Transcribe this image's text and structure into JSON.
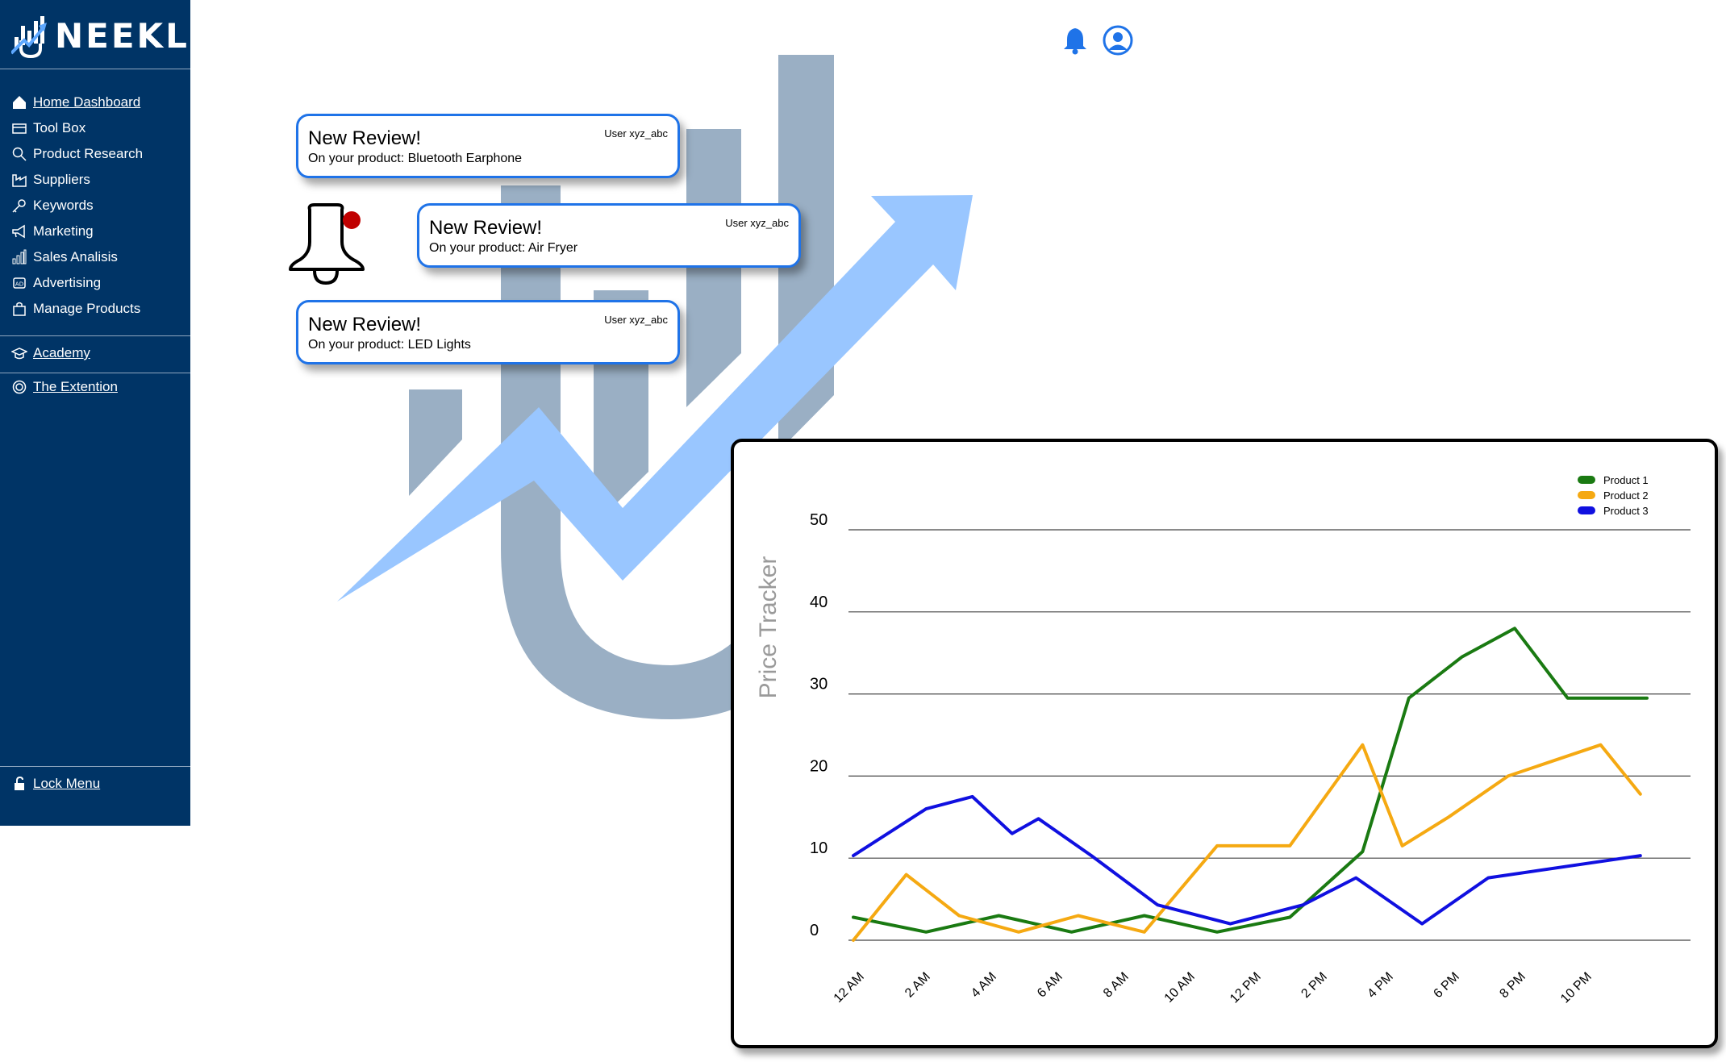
{
  "brand": {
    "name": "NEEKLI",
    "accent": "#003466",
    "highlight": "#1f73e8"
  },
  "sidebar": {
    "items": [
      {
        "label": "Home Dashboard",
        "icon": "home-icon",
        "underlined": true
      },
      {
        "label": "Tool Box",
        "icon": "toolbox-icon",
        "underlined": false
      },
      {
        "label": "Product Research",
        "icon": "search-icon",
        "underlined": false
      },
      {
        "label": "Suppliers",
        "icon": "factory-icon",
        "underlined": false
      },
      {
        "label": "Keywords",
        "icon": "key-icon",
        "underlined": false
      },
      {
        "label": "Marketing",
        "icon": "megaphone-icon",
        "underlined": false
      },
      {
        "label": "Sales Analisis",
        "icon": "bar-chart-icon",
        "underlined": false
      },
      {
        "label": "Advertising",
        "icon": "ad-icon",
        "underlined": false
      },
      {
        "label": "Manage Products",
        "icon": "shopping-bag-icon",
        "underlined": false
      }
    ],
    "academy": {
      "label": "Academy",
      "icon": "graduation-cap-icon"
    },
    "extension": {
      "label": "The Extention",
      "icon": "extension-icon"
    },
    "lock": {
      "label": "Lock Menu",
      "icon": "lock-icon"
    }
  },
  "header": {
    "bell_icon": "bell-icon",
    "user_icon": "user-circle-icon"
  },
  "notifications": [
    {
      "title": "New Review!",
      "subtitle": "On your product: Bluetooth Earphone",
      "user": "User xyz_abc"
    },
    {
      "title": "New Review!",
      "subtitle": "On your product: Air Fryer",
      "user": "User xyz_abc"
    },
    {
      "title": "New Review!",
      "subtitle": "On your product: LED Lights",
      "user": "User xyz_abc"
    }
  ],
  "chart_data": {
    "type": "line",
    "title": "",
    "xlabel": "",
    "ylabel": "Price Tracker",
    "ylim": [
      0,
      50
    ],
    "yticks": [
      0,
      10,
      20,
      30,
      40,
      50
    ],
    "categories": [
      "12 AM",
      "2 AM",
      "4 AM",
      "6 AM",
      "8 AM",
      "10 AM",
      "12 PM",
      "2 PM",
      "4 PM",
      "6 PM",
      "8 PM",
      "10 PM"
    ],
    "grid": true,
    "legend": "top-right",
    "series": [
      {
        "name": "Product 1",
        "color": "#1a7a12",
        "x": [
          0,
          1.1,
          2.2,
          3.3,
          4.4,
          5.5,
          6.6,
          7.7,
          8.4,
          9.2,
          10.0,
          10.8,
          12.0
        ],
        "y": [
          2.8,
          1.0,
          3.0,
          1.0,
          3.0,
          1.0,
          2.8,
          10.8,
          29.5,
          34.5,
          38.0,
          29.5,
          29.5
        ]
      },
      {
        "name": "Product 2",
        "color": "#f5a912",
        "x": [
          0,
          0.8,
          1.6,
          2.5,
          3.4,
          4.4,
          5.5,
          6.6,
          7.7,
          8.3,
          9.0,
          9.9,
          11.3,
          11.9
        ],
        "y": [
          0,
          8.0,
          3.0,
          1.0,
          3.0,
          1.0,
          11.5,
          11.5,
          23.8,
          11.5,
          15.0,
          20.0,
          23.8,
          17.8
        ]
      },
      {
        "name": "Product 3",
        "color": "#1010e0",
        "x": [
          0,
          1.1,
          1.8,
          2.4,
          2.8,
          3.6,
          4.6,
          5.7,
          6.8,
          7.6,
          8.6,
          9.6,
          11.9
        ],
        "y": [
          10.3,
          16.0,
          17.5,
          13.0,
          14.8,
          10.3,
          4.3,
          2.0,
          4.3,
          7.6,
          2.0,
          7.6,
          10.3
        ]
      }
    ]
  }
}
